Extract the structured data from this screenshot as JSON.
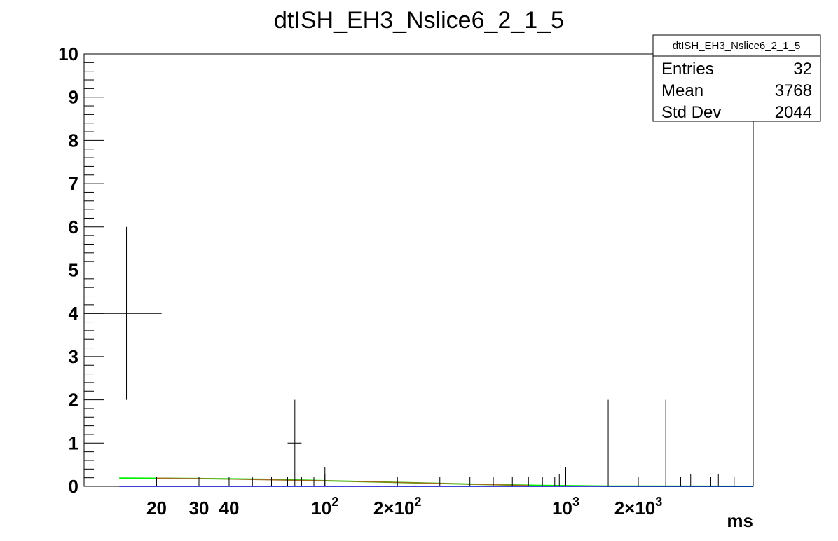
{
  "chart_data": {
    "type": "scatter",
    "title": "dtISH_EH3_Nslice6_2_1_5",
    "xlabel": "ms",
    "ylabel": "",
    "xscale": "log",
    "xlim": [
      10,
      6000
    ],
    "ylim": [
      0,
      10
    ],
    "grid": false,
    "x_tick_labels": [
      {
        "value": 20,
        "base": "20",
        "exp": ""
      },
      {
        "value": 30,
        "base": "30",
        "exp": ""
      },
      {
        "value": 40,
        "base": "40",
        "exp": ""
      },
      {
        "value": 100,
        "base": "10",
        "exp": "2"
      },
      {
        "value": 200,
        "base": "2×10",
        "exp": "2"
      },
      {
        "value": 1000,
        "base": "10",
        "exp": "3"
      },
      {
        "value": 2000,
        "base": "2×10",
        "exp": "3"
      }
    ],
    "y_tick_labels": [
      "0",
      "1",
      "2",
      "3",
      "4",
      "5",
      "6",
      "7",
      "8",
      "9",
      "10"
    ],
    "points": [
      {
        "x": 15,
        "y": 4,
        "xlow": 10,
        "xhigh": 21,
        "ylow": 2,
        "yhigh": 6
      },
      {
        "x": 75,
        "y": 1,
        "xlow": 70,
        "xhigh": 80,
        "ylow": 0,
        "yhigh": 2
      },
      {
        "x": 1500,
        "y": 1,
        "xlow": 1500,
        "xhigh": 1500,
        "ylow": 0,
        "yhigh": 2
      },
      {
        "x": 2600,
        "y": 1,
        "xlow": 2600,
        "xhigh": 2600,
        "ylow": 0,
        "yhigh": 2
      }
    ],
    "empty_bin_markers": [
      100,
      940,
      3300,
      4300
    ],
    "fit_curves": [
      {
        "color": "#00ee00",
        "x": [
          14,
          30,
          60,
          100,
          200,
          400,
          800,
          1500,
          6000
        ],
        "y": [
          0.19,
          0.18,
          0.16,
          0.13,
          0.09,
          0.05,
          0.02,
          0.005,
          0.0
        ]
      },
      {
        "color": "#a07020",
        "x": [
          20,
          30,
          60,
          100,
          200,
          400,
          700
        ],
        "y": [
          0.19,
          0.18,
          0.15,
          0.13,
          0.09,
          0.05,
          0.02
        ]
      },
      {
        "color": "#0000cc",
        "x": [
          14,
          6000
        ],
        "y": [
          0.0,
          0.0
        ]
      }
    ],
    "legend": {
      "placement": "top-right",
      "name": "dtISH_EH3_Nslice6_2_1_5",
      "rows": [
        {
          "label": "Entries",
          "value": "32"
        },
        {
          "label": "Mean",
          "value": "3768"
        },
        {
          "label": "Std Dev",
          "value": "2044"
        }
      ]
    }
  }
}
